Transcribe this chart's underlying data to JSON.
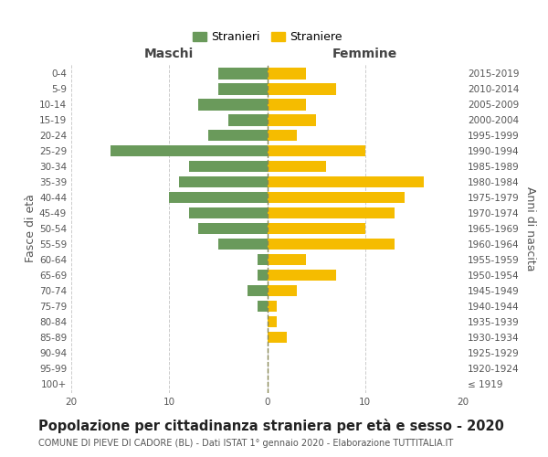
{
  "age_groups": [
    "100+",
    "95-99",
    "90-94",
    "85-89",
    "80-84",
    "75-79",
    "70-74",
    "65-69",
    "60-64",
    "55-59",
    "50-54",
    "45-49",
    "40-44",
    "35-39",
    "30-34",
    "25-29",
    "20-24",
    "15-19",
    "10-14",
    "5-9",
    "0-4"
  ],
  "birth_years": [
    "≤ 1919",
    "1920-1924",
    "1925-1929",
    "1930-1934",
    "1935-1939",
    "1940-1944",
    "1945-1949",
    "1950-1954",
    "1955-1959",
    "1960-1964",
    "1965-1969",
    "1970-1974",
    "1975-1979",
    "1980-1984",
    "1985-1989",
    "1990-1994",
    "1995-1999",
    "2000-2004",
    "2005-2009",
    "2010-2014",
    "2015-2019"
  ],
  "males": [
    0,
    0,
    0,
    0,
    0,
    1,
    2,
    1,
    1,
    5,
    7,
    8,
    10,
    9,
    8,
    16,
    6,
    4,
    7,
    5,
    5
  ],
  "females": [
    0,
    0,
    0,
    2,
    1,
    1,
    3,
    7,
    4,
    13,
    10,
    13,
    14,
    16,
    6,
    10,
    3,
    5,
    4,
    7,
    4
  ],
  "male_color": "#6a9a5b",
  "female_color": "#f5bc00",
  "center_line_color": "#888855",
  "grid_color": "#cccccc",
  "background_color": "#ffffff",
  "title": "Popolazione per cittadinanza straniera per età e sesso - 2020",
  "subtitle": "COMUNE DI PIEVE DI CADORE (BL) - Dati ISTAT 1° gennaio 2020 - Elaborazione TUTTITALIA.IT",
  "ylabel_left": "Fasce di età",
  "ylabel_right": "Anni di nascita",
  "xlabel_left": "Maschi",
  "xlabel_right": "Femmine",
  "legend_males": "Stranieri",
  "legend_females": "Straniere",
  "xlim": 20,
  "title_fontsize": 10.5,
  "subtitle_fontsize": 7.0,
  "label_fontsize": 9,
  "tick_fontsize": 7.5
}
